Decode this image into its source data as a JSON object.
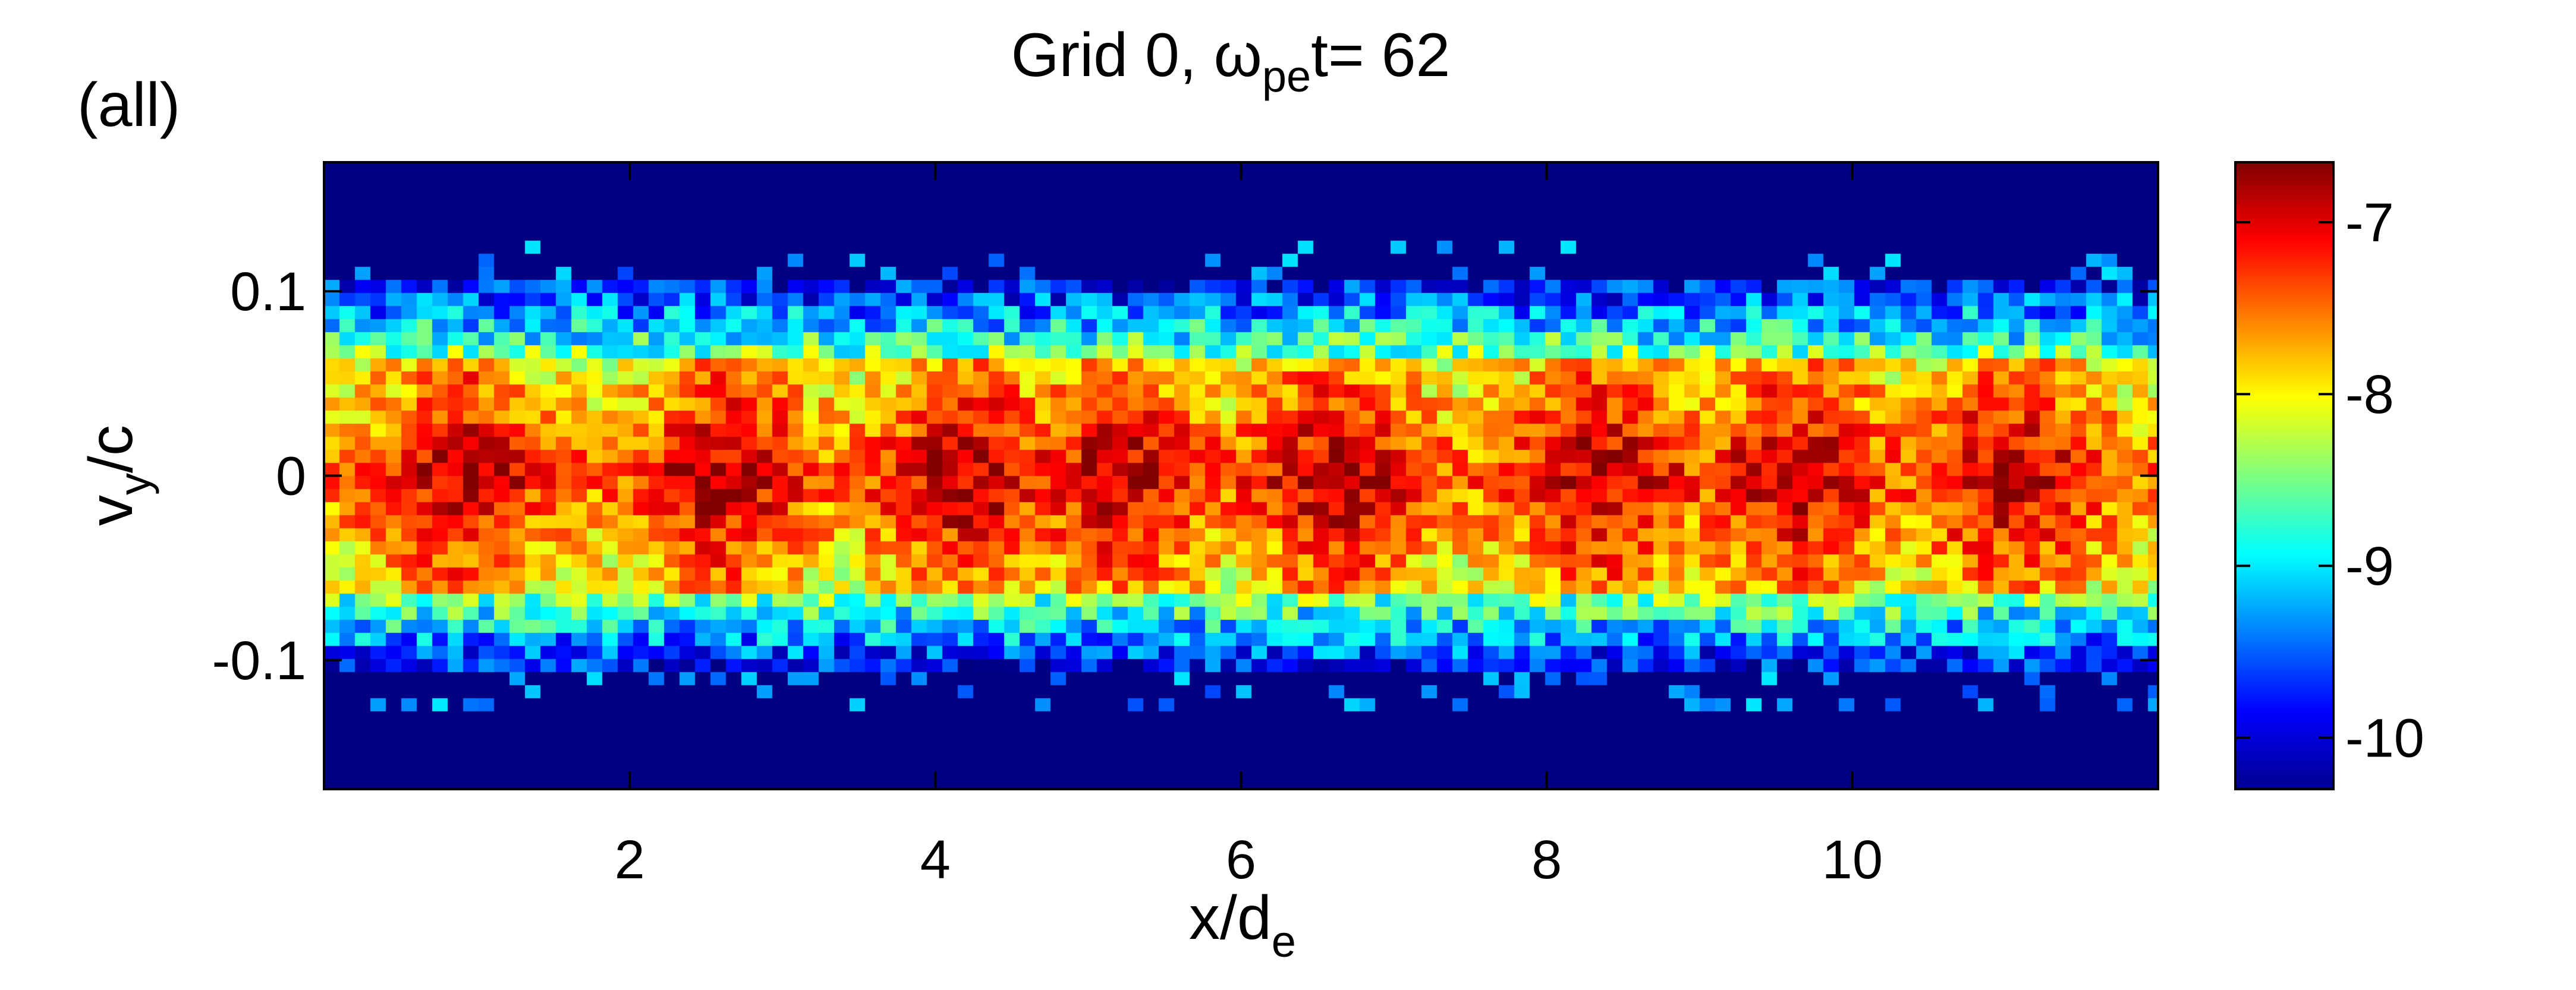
{
  "chart_data": {
    "type": "heatmap",
    "title": {
      "prefix": "Grid 0,  ω",
      "subscript": "pe",
      "suffix": "t= 62"
    },
    "panel_label": "(all)",
    "xlabel": {
      "main": "x/d",
      "subscript": "e"
    },
    "ylabel": {
      "main": "v",
      "subscript": "y",
      "suffix": "/c"
    },
    "xlim": [
      0,
      12
    ],
    "ylim": [
      -0.17,
      0.17
    ],
    "x_ticks": [
      {
        "value": 2,
        "label": "2"
      },
      {
        "value": 4,
        "label": "4"
      },
      {
        "value": 6,
        "label": "6"
      },
      {
        "value": 8,
        "label": "8"
      },
      {
        "value": 10,
        "label": "10"
      }
    ],
    "y_ticks": [
      {
        "value": 0.1,
        "label": "0.1"
      },
      {
        "value": 0,
        "label": "0"
      },
      {
        "value": -0.1,
        "label": "-0.1"
      }
    ],
    "colorbar": {
      "colormap": "jet",
      "range": [
        -10.3,
        -6.65
      ],
      "ticks": [
        {
          "value": -7,
          "label": "-7"
        },
        {
          "value": -8,
          "label": "-8"
        },
        {
          "value": -9,
          "label": "-9"
        },
        {
          "value": -10,
          "label": "-10"
        }
      ]
    },
    "field": {
      "background_value": -10.3,
      "core_center_vy": 0.0,
      "core_half_width_vy": 0.065,
      "edge_half_width_vy": 0.105,
      "blob_centers_x": [
        0.9,
        2.6,
        4.2,
        5.2,
        6.6,
        8.3,
        9.6,
        11.0
      ],
      "blob_peak_value": -6.9
    }
  }
}
